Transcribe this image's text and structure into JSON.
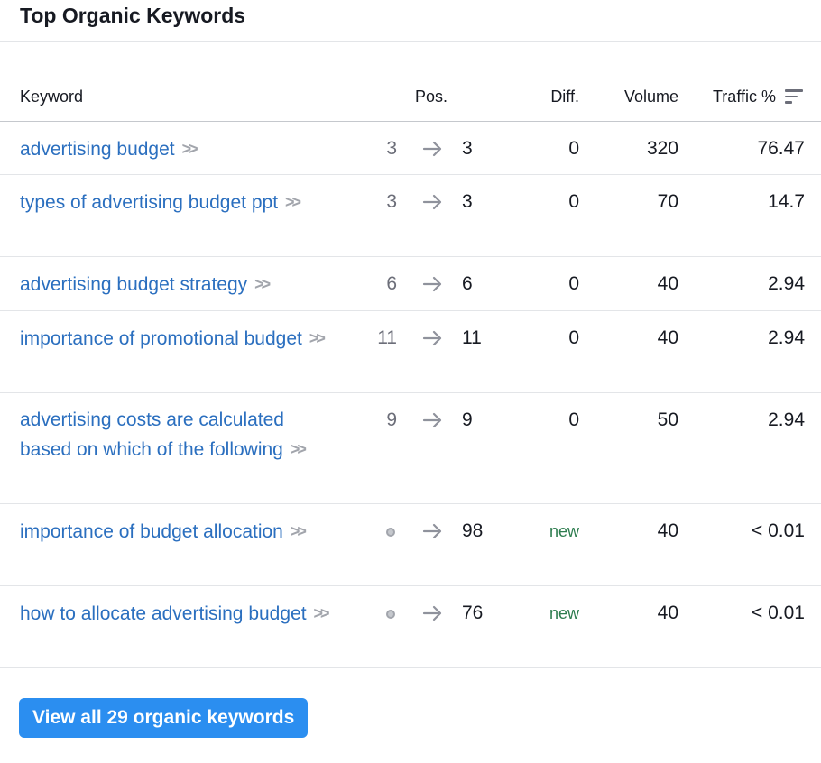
{
  "title": "Top Organic Keywords",
  "columns": {
    "keyword": "Keyword",
    "pos": "Pos.",
    "diff": "Diff.",
    "volume": "Volume",
    "traffic": "Traffic %"
  },
  "rows": [
    {
      "keyword": "advertising budget",
      "pos_prev": "3",
      "pos": "3",
      "diff": "0",
      "volume": "320",
      "traffic": "76.47"
    },
    {
      "keyword": "types of advertising budget ppt",
      "pos_prev": "3",
      "pos": "3",
      "diff": "0",
      "volume": "70",
      "traffic": "14.7"
    },
    {
      "keyword": "advertising budget strategy",
      "pos_prev": "6",
      "pos": "6",
      "diff": "0",
      "volume": "40",
      "traffic": "2.94"
    },
    {
      "keyword": "importance of promotional budget",
      "pos_prev": "11",
      "pos": "11",
      "diff": "0",
      "volume": "40",
      "traffic": "2.94"
    },
    {
      "keyword": "advertising costs are calculated based on which of the following",
      "pos_prev": "9",
      "pos": "9",
      "diff": "0",
      "volume": "50",
      "traffic": "2.94"
    },
    {
      "keyword": "importance of budget allocation",
      "pos_prev": "",
      "pos": "98",
      "diff": "new",
      "volume": "40",
      "traffic": "< 0.01"
    },
    {
      "keyword": "how to allocate advertising budget",
      "pos_prev": "",
      "pos": "76",
      "diff": "new",
      "volume": "40",
      "traffic": "< 0.01"
    }
  ],
  "icons": {
    "chevron": "double-chevron-right-icon",
    "arrow": "arrow-right-icon",
    "sort": "sort-icon",
    "new_position": "dot-icon"
  },
  "colors": {
    "link": "#2b6fbf",
    "button": "#2b8ef0",
    "new": "#2e7d4f"
  },
  "button_label": "View all 29 organic keywords"
}
